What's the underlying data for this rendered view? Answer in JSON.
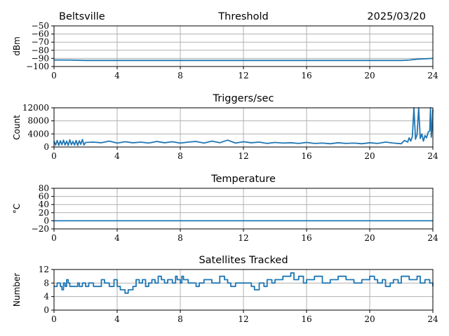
{
  "header": {
    "station": "Beltsville",
    "date": "2025/03/20"
  },
  "chart_data": [
    {
      "type": "line",
      "title": "Threshold",
      "ylabel": "dBm",
      "xlim": [
        0,
        24
      ],
      "ylim": [
        -100,
        -50
      ],
      "xticks": [
        0,
        4,
        8,
        12,
        16,
        20,
        24
      ],
      "yticks": [
        -50,
        -60,
        -70,
        -80,
        -90,
        -100
      ],
      "ytick_labels": [
        "−50",
        "−60",
        "−70",
        "−80",
        "−90",
        "−100"
      ],
      "grid": true,
      "x": [
        0,
        1,
        2,
        4,
        8,
        12,
        16,
        20,
        21.5,
        22,
        22.5,
        23,
        23.5,
        24
      ],
      "values": [
        -92,
        -92,
        -92.5,
        -92.5,
        -92.5,
        -92.5,
        -92.5,
        -92.5,
        -92.5,
        -92.5,
        -92,
        -91,
        -90.5,
        -90
      ]
    },
    {
      "type": "line",
      "title": "Triggers/sec",
      "ylabel": "Count",
      "xlim": [
        0,
        24
      ],
      "ylim": [
        0,
        12000
      ],
      "xticks": [
        0,
        4,
        8,
        12,
        16,
        20,
        24
      ],
      "yticks": [
        0,
        4000,
        8000,
        12000
      ],
      "ytick_labels": [
        "0",
        "4000",
        "8000",
        "12000"
      ],
      "grid": true,
      "x": [
        0,
        0.1,
        0.2,
        0.3,
        0.4,
        0.5,
        0.6,
        0.7,
        0.8,
        0.9,
        1,
        1.1,
        1.2,
        1.3,
        1.4,
        1.5,
        1.6,
        1.7,
        1.8,
        1.9,
        2,
        2.5,
        3,
        3.5,
        4,
        4.5,
        5,
        5.5,
        6,
        6.5,
        7,
        7.5,
        8,
        8.5,
        9,
        9.5,
        10,
        10.5,
        11,
        11.5,
        12,
        12.5,
        13,
        13.5,
        14,
        14.5,
        15,
        15.5,
        16,
        16.5,
        17,
        17.5,
        18,
        18.5,
        19,
        19.5,
        20,
        20.5,
        21,
        21.5,
        22,
        22.2,
        22.4,
        22.5,
        22.6,
        22.7,
        22.8,
        22.9,
        23,
        23.1,
        23.2,
        23.3,
        23.4,
        23.5,
        23.6,
        23.7,
        23.8,
        23.85,
        23.9,
        23.95,
        24
      ],
      "values": [
        1800,
        600,
        2000,
        500,
        1900,
        700,
        2100,
        600,
        1800,
        500,
        2200,
        700,
        1700,
        600,
        2000,
        500,
        1900,
        800,
        2300,
        600,
        1400,
        1500,
        1300,
        1800,
        1200,
        1600,
        1300,
        1500,
        1200,
        1700,
        1300,
        1600,
        1200,
        1500,
        1700,
        1200,
        1800,
        1300,
        2100,
        1200,
        1600,
        1300,
        1500,
        1100,
        1400,
        1200,
        1300,
        1100,
        1400,
        1100,
        1200,
        1000,
        1300,
        1100,
        1200,
        1000,
        1300,
        1100,
        1500,
        1200,
        1000,
        2000,
        1500,
        2800,
        1800,
        3200,
        12000,
        2400,
        3800,
        12000,
        2600,
        4000,
        1800,
        3500,
        2800,
        4500,
        5000,
        12000,
        3000,
        6000,
        11500
      ]
    },
    {
      "type": "line",
      "title": "Temperature",
      "ylabel": "°C",
      "xlim": [
        0,
        24
      ],
      "ylim": [
        -20,
        80
      ],
      "xticks": [
        0,
        4,
        8,
        12,
        16,
        20,
        24
      ],
      "yticks": [
        -20,
        0,
        20,
        40,
        60,
        80
      ],
      "ytick_labels": [
        "−20",
        "0",
        "20",
        "40",
        "60",
        "80"
      ],
      "grid": true,
      "x": [
        0,
        4,
        8,
        12,
        16,
        20,
        24
      ],
      "values": [
        0,
        0,
        0,
        0,
        0,
        0,
        0
      ]
    },
    {
      "type": "line",
      "title": "Satellites Tracked",
      "ylabel": "Number",
      "xlim": [
        0,
        24
      ],
      "ylim": [
        0,
        12
      ],
      "xticks": [
        0,
        4,
        8,
        12,
        16,
        20,
        24
      ],
      "yticks": [
        0,
        4,
        8,
        12
      ],
      "ytick_labels": [
        "0",
        "4",
        "8",
        "12"
      ],
      "grid": true,
      "step": true,
      "x": [
        0,
        0.2,
        0.4,
        0.5,
        0.6,
        0.7,
        0.8,
        0.9,
        1.0,
        1.5,
        1.6,
        1.8,
        2.0,
        2.2,
        2.5,
        3.0,
        3.2,
        3.5,
        3.8,
        4.0,
        4.2,
        4.5,
        4.7,
        5.0,
        5.2,
        5.4,
        5.6,
        5.8,
        6.0,
        6.2,
        6.4,
        6.6,
        6.8,
        7.0,
        7.2,
        7.5,
        7.7,
        7.8,
        8.0,
        8.1,
        8.2,
        8.5,
        9.0,
        9.2,
        9.5,
        10.0,
        10.5,
        10.8,
        11.0,
        11.2,
        11.5,
        12.0,
        12.5,
        12.7,
        13.0,
        13.3,
        13.5,
        13.8,
        14.0,
        14.5,
        15.0,
        15.2,
        15.5,
        15.8,
        16.0,
        16.5,
        17.0,
        17.5,
        18.0,
        18.5,
        19.0,
        19.5,
        20.0,
        20.3,
        20.5,
        20.8,
        21.0,
        21.3,
        21.5,
        21.8,
        22.0,
        22.5,
        23.0,
        23.2,
        23.5,
        23.8,
        24.0
      ],
      "values": [
        7,
        8,
        7,
        6,
        8,
        7,
        9,
        8,
        7,
        8,
        7,
        8,
        7,
        8,
        7,
        9,
        8,
        7,
        9,
        7,
        6,
        5,
        6,
        7,
        9,
        8,
        9,
        7,
        8,
        9,
        8,
        10,
        9,
        8,
        9,
        8,
        10,
        9,
        8,
        10,
        9,
        8,
        7,
        8,
        9,
        8,
        10,
        9,
        8,
        7,
        8,
        8,
        7,
        6,
        8,
        7,
        9,
        8,
        9,
        10,
        11,
        9,
        10,
        8,
        9,
        10,
        8,
        9,
        10,
        9,
        8,
        9,
        10,
        9,
        8,
        9,
        7,
        8,
        9,
        8,
        10,
        9,
        10,
        8,
        9,
        8,
        7
      ]
    }
  ]
}
